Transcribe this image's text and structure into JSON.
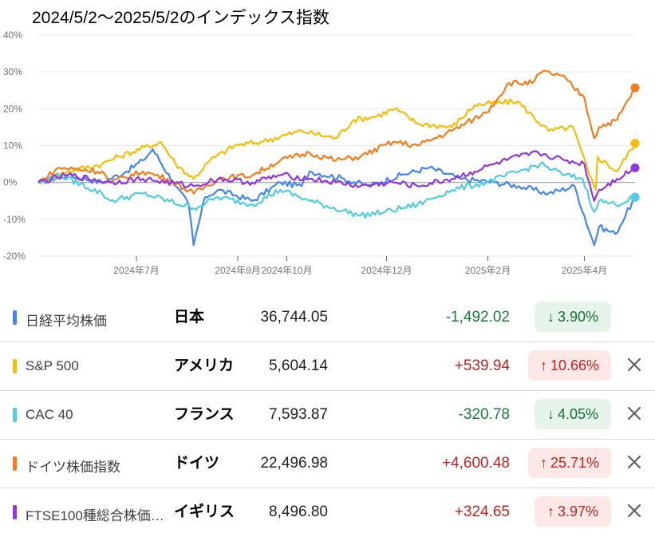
{
  "title": "2024/5/2～2025/5/2のインデックス指数",
  "chart_data": {
    "type": "line",
    "yaxis": {
      "ticks": [
        "40%",
        "30%",
        "20%",
        "10%",
        "0%",
        "-10%",
        "-20%"
      ],
      "values": [
        40,
        30,
        20,
        10,
        0,
        -10,
        -20
      ],
      "ylim": [
        -20,
        40
      ]
    },
    "xaxis": {
      "tick_labels": [
        "2024年7月",
        "2024年9月",
        "2024年10月",
        "2024年12月",
        "2025年2月",
        "2025年4月"
      ],
      "tick_values": [
        "2024-07-01",
        "2024-09-01",
        "2024-10-01",
        "2024-12-01",
        "2025-02-01",
        "2025-04-01"
      ],
      "xlim": [
        "2024-05-02",
        "2025-05-02"
      ]
    },
    "grid": true,
    "series": [
      {
        "name": "日経平均株価",
        "color": "#4285f4",
        "points": [
          [
            "2024-05-02",
            0
          ],
          [
            "2024-05-20",
            2
          ],
          [
            "2024-06-10",
            0
          ],
          [
            "2024-06-25",
            3
          ],
          [
            "2024-07-05",
            6
          ],
          [
            "2024-07-11",
            9
          ],
          [
            "2024-07-25",
            -1
          ],
          [
            "2024-08-02",
            -6
          ],
          [
            "2024-08-05",
            -17
          ],
          [
            "2024-08-12",
            -4
          ],
          [
            "2024-08-20",
            -2
          ],
          [
            "2024-09-10",
            -5
          ],
          [
            "2024-09-27",
            0
          ],
          [
            "2024-10-10",
            -1
          ],
          [
            "2024-10-15",
            3
          ],
          [
            "2024-11-05",
            1
          ],
          [
            "2024-11-20",
            -1
          ],
          [
            "2024-12-10",
            2
          ],
          [
            "2024-12-27",
            4
          ],
          [
            "2025-01-15",
            1
          ],
          [
            "2025-02-05",
            0
          ],
          [
            "2025-02-20",
            -1
          ],
          [
            "2025-03-10",
            -3
          ],
          [
            "2025-03-26",
            -1
          ],
          [
            "2025-04-07",
            -17
          ],
          [
            "2025-04-10",
            -12
          ],
          [
            "2025-04-20",
            -14
          ],
          [
            "2025-05-02",
            -4
          ]
        ]
      },
      {
        "name": "S&P 500",
        "color": "#fbbc04",
        "points": [
          [
            "2024-05-02",
            0
          ],
          [
            "2024-05-20",
            3
          ],
          [
            "2024-06-10",
            5
          ],
          [
            "2024-06-20",
            7
          ],
          [
            "2024-07-16",
            11
          ],
          [
            "2024-07-25",
            5
          ],
          [
            "2024-08-05",
            1
          ],
          [
            "2024-08-15",
            6
          ],
          [
            "2024-08-30",
            10
          ],
          [
            "2024-09-15",
            11
          ],
          [
            "2024-10-10",
            14
          ],
          [
            "2024-10-31",
            12
          ],
          [
            "2024-11-11",
            17
          ],
          [
            "2024-11-25",
            18
          ],
          [
            "2024-12-06",
            20
          ],
          [
            "2024-12-20",
            16
          ],
          [
            "2025-01-10",
            15
          ],
          [
            "2025-01-24",
            21
          ],
          [
            "2025-02-19",
            22
          ],
          [
            "2025-03-10",
            14
          ],
          [
            "2025-03-25",
            15
          ],
          [
            "2025-04-04",
            2
          ],
          [
            "2025-04-08",
            -2
          ],
          [
            "2025-04-09",
            7
          ],
          [
            "2025-04-21",
            3
          ],
          [
            "2025-05-02",
            10.66
          ]
        ]
      },
      {
        "name": "CAC 40",
        "color": "#4ecde6",
        "points": [
          [
            "2024-05-02",
            0
          ],
          [
            "2024-05-15",
            2
          ],
          [
            "2024-06-10",
            -3
          ],
          [
            "2024-06-15",
            -5
          ],
          [
            "2024-07-05",
            -3
          ],
          [
            "2024-08-05",
            -7
          ],
          [
            "2024-08-20",
            -4
          ],
          [
            "2024-09-10",
            -6
          ],
          [
            "2024-09-27",
            -2
          ],
          [
            "2024-10-15",
            -5
          ],
          [
            "2024-11-15",
            -9
          ],
          [
            "2024-11-30",
            -8
          ],
          [
            "2024-12-20",
            -6
          ],
          [
            "2025-01-10",
            -2
          ],
          [
            "2025-01-31",
            0
          ],
          [
            "2025-02-20",
            3
          ],
          [
            "2025-03-05",
            5
          ],
          [
            "2025-03-20",
            2
          ],
          [
            "2025-03-31",
            1
          ],
          [
            "2025-04-07",
            -8
          ],
          [
            "2025-04-10",
            -5
          ],
          [
            "2025-04-20",
            -6
          ],
          [
            "2025-05-02",
            -4.05
          ]
        ]
      },
      {
        "name": "ドイツ株価指数",
        "color": "#fa7b17",
        "points": [
          [
            "2024-05-02",
            0
          ],
          [
            "2024-05-15",
            4
          ],
          [
            "2024-06-10",
            3
          ],
          [
            "2024-06-15",
            0
          ],
          [
            "2024-07-05",
            3
          ],
          [
            "2024-07-20",
            1
          ],
          [
            "2024-08-05",
            -3
          ],
          [
            "2024-08-20",
            1
          ],
          [
            "2024-09-10",
            2
          ],
          [
            "2024-09-27",
            6
          ],
          [
            "2024-10-15",
            8
          ],
          [
            "2024-10-31",
            6
          ],
          [
            "2024-11-15",
            7
          ],
          [
            "2024-12-05",
            11
          ],
          [
            "2024-12-20",
            10
          ],
          [
            "2025-01-10",
            14
          ],
          [
            "2025-01-31",
            19
          ],
          [
            "2025-02-14",
            27
          ],
          [
            "2025-02-28",
            27
          ],
          [
            "2025-03-06",
            30
          ],
          [
            "2025-03-18",
            29
          ],
          [
            "2025-04-01",
            23
          ],
          [
            "2025-04-07",
            12
          ],
          [
            "2025-04-10",
            15
          ],
          [
            "2025-04-21",
            17
          ],
          [
            "2025-05-02",
            25.71
          ]
        ]
      },
      {
        "name": "FTSE100種総合株価…",
        "color": "#9334e6",
        "points": [
          [
            "2024-05-02",
            0
          ],
          [
            "2024-05-20",
            2
          ],
          [
            "2024-06-15",
            0
          ],
          [
            "2024-07-05",
            1
          ],
          [
            "2024-08-05",
            -1
          ],
          [
            "2024-08-20",
            1
          ],
          [
            "2024-09-10",
            0
          ],
          [
            "2024-09-27",
            2
          ],
          [
            "2024-10-15",
            1
          ],
          [
            "2024-10-31",
            0
          ],
          [
            "2024-11-15",
            -1
          ],
          [
            "2024-12-05",
            0
          ],
          [
            "2024-12-20",
            -1
          ],
          [
            "2025-01-10",
            1
          ],
          [
            "2025-01-24",
            3
          ],
          [
            "2025-02-05",
            5
          ],
          [
            "2025-02-20",
            7
          ],
          [
            "2025-03-04",
            8
          ],
          [
            "2025-03-20",
            6
          ],
          [
            "2025-04-01",
            5
          ],
          [
            "2025-04-07",
            -5
          ],
          [
            "2025-04-10",
            -2
          ],
          [
            "2025-04-21",
            1
          ],
          [
            "2025-05-02",
            3.97
          ]
        ]
      }
    ]
  },
  "rows": [
    {
      "name": "日経平均株価",
      "country": "日本",
      "price": "36,744.05",
      "change": "-1,492.02",
      "percent": "3.90%",
      "arrow": "↓",
      "direction": "down",
      "color": "#4285f4",
      "closable": false
    },
    {
      "name": "S&P 500",
      "country": "アメリカ",
      "price": "5,604.14",
      "change": "+539.94",
      "percent": "10.66%",
      "arrow": "↑",
      "direction": "up",
      "color": "#fbbc04",
      "closable": true
    },
    {
      "name": "CAC 40",
      "country": "フランス",
      "price": "7,593.87",
      "change": "-320.78",
      "percent": "4.05%",
      "arrow": "↓",
      "direction": "down",
      "color": "#4ecde6",
      "closable": true
    },
    {
      "name": "ドイツ株価指数",
      "country": "ドイツ",
      "price": "22,496.98",
      "change": "+4,600.48",
      "percent": "25.71%",
      "arrow": "↑",
      "direction": "up",
      "color": "#fa7b17",
      "closable": true
    },
    {
      "name": "FTSE100種総合株価…",
      "country": "イギリス",
      "price": "8,496.80",
      "change": "+324.65",
      "percent": "3.97%",
      "arrow": "↑",
      "direction": "up",
      "color": "#9334e6",
      "closable": true
    }
  ]
}
